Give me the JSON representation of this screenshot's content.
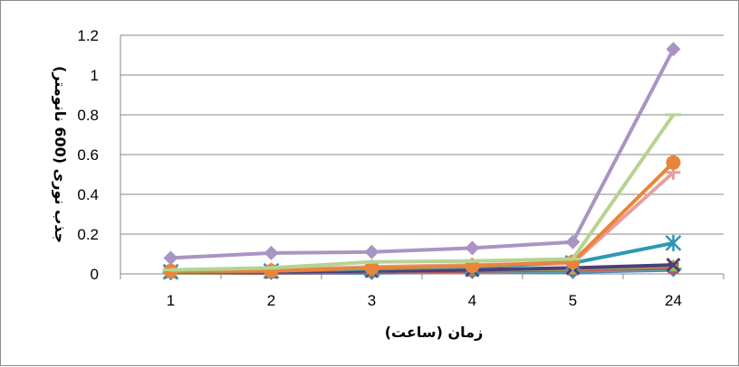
{
  "chart_data": {
    "type": "line",
    "categories": [
      "1",
      "2",
      "3",
      "4",
      "5",
      "24"
    ],
    "xlabel": "زمان (ساعت)",
    "ylabel": "جذب نوری (600 نانومتر)",
    "ylim": [
      0,
      1.2
    ],
    "yticks": [
      "0",
      "0.2",
      "0.4",
      "0.6",
      "0.8",
      "1",
      "1.2"
    ],
    "grid": true,
    "series": [
      {
        "values": [
          0.08,
          0.105,
          0.11,
          0.13,
          0.16,
          1.13
        ],
        "color": "#a994c4",
        "marker": "diamond"
      },
      {
        "values": [
          0.02,
          0.03,
          0.06,
          0.065,
          0.075,
          0.8
        ],
        "color": "#b6d391",
        "marker": "dash"
      },
      {
        "values": [
          0.015,
          0.015,
          0.03,
          0.04,
          0.06,
          0.56
        ],
        "color": "#e9853a",
        "marker": "circle"
      },
      {
        "values": [
          0.015,
          0.02,
          0.035,
          0.045,
          0.055,
          0.51
        ],
        "color": "#e79f9c",
        "marker": "plus"
      },
      {
        "values": [
          0.01,
          0.015,
          0.025,
          0.035,
          0.055,
          0.155
        ],
        "color": "#2e97b5",
        "marker": "star"
      },
      {
        "values": [
          0.01,
          0.01,
          0.015,
          0.02,
          0.03,
          0.045
        ],
        "color": "#4f3e76",
        "marker": "x"
      },
      {
        "values": [
          0.005,
          0.01,
          0.015,
          0.02,
          0.025,
          0.04
        ],
        "color": "#9bbb59",
        "marker": "triangle"
      },
      {
        "values": [
          0.005,
          0.005,
          0.01,
          0.015,
          0.02,
          0.03
        ],
        "color": "#c0504d",
        "marker": "square"
      },
      {
        "values": [
          0.005,
          0.005,
          0.01,
          0.01,
          0.015,
          0.025
        ],
        "color": "#4aacc6",
        "marker": "dash"
      },
      {
        "values": [
          0.005,
          0.005,
          0.005,
          0.01,
          0.01,
          0.02
        ],
        "color": "#4f81bd",
        "marker": "diamond"
      }
    ]
  }
}
